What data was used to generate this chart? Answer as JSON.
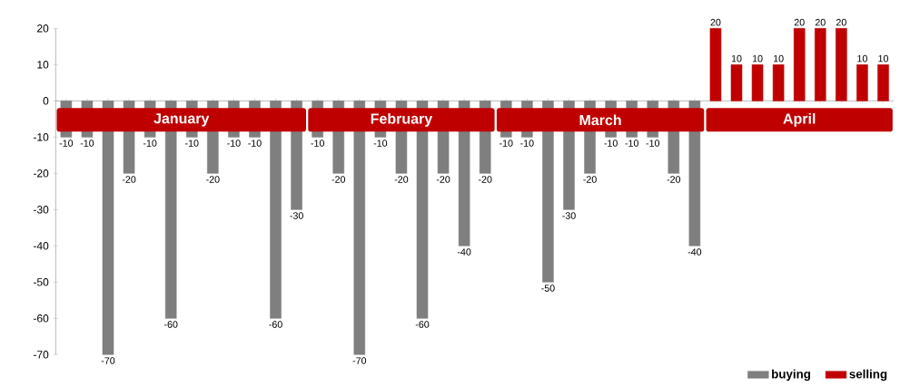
{
  "chart_data": {
    "type": "bar",
    "categories": [
      null,
      null,
      null,
      null,
      null,
      null,
      null,
      null,
      null,
      null,
      null,
      null,
      null,
      null,
      null,
      null,
      null,
      null,
      null,
      null,
      null,
      null,
      null,
      null,
      null,
      null,
      null,
      null,
      null,
      null,
      null,
      null,
      null,
      null,
      null,
      null,
      null,
      null,
      null,
      null
    ],
    "series": [
      {
        "name": "buying",
        "color": "#7f7f7f",
        "values": [
          -10,
          -10,
          -70,
          -20,
          -10,
          -60,
          -10,
          -20,
          -10,
          -10,
          -60,
          -30,
          -10,
          -20,
          -70,
          -10,
          -20,
          -60,
          -20,
          -40,
          -20,
          -10,
          -10,
          -50,
          -30,
          -20,
          -10,
          -10,
          -10,
          -20,
          -40,
          null,
          null,
          null,
          null,
          null,
          null,
          null,
          null,
          null
        ],
        "value_labels": [
          "-10",
          "-10",
          "-70",
          "-20",
          "-10",
          "-60",
          "-10",
          "-20",
          "-10",
          "-10",
          "-60",
          "-30",
          "-10",
          "-20",
          "-70",
          "-10",
          "-20",
          "-60",
          "-20",
          "-40",
          "-20",
          "-10",
          "-10",
          "-50",
          "-30",
          "-20",
          "-10",
          "-10",
          "-10",
          "-20",
          "-40",
          null,
          null,
          null,
          null,
          null,
          null,
          null,
          null,
          null
        ]
      },
      {
        "name": "selling",
        "color": "#c00000",
        "values": [
          null,
          null,
          null,
          null,
          null,
          null,
          null,
          null,
          null,
          null,
          null,
          null,
          null,
          null,
          null,
          null,
          null,
          null,
          null,
          null,
          null,
          null,
          null,
          null,
          null,
          null,
          null,
          null,
          null,
          null,
          null,
          20,
          10,
          10,
          10,
          20,
          20,
          20,
          10,
          10
        ],
        "value_labels": [
          null,
          null,
          null,
          null,
          null,
          null,
          null,
          null,
          null,
          null,
          null,
          null,
          null,
          null,
          null,
          null,
          null,
          null,
          null,
          null,
          null,
          null,
          null,
          null,
          null,
          null,
          null,
          null,
          null,
          null,
          null,
          "20",
          "10",
          "10",
          "10",
          "20",
          "20",
          "20",
          "10",
          "10"
        ]
      }
    ],
    "annotations": [
      "January",
      "February",
      "March",
      "April"
    ],
    "ylim": [
      -70,
      20
    ],
    "yticks": [
      -70,
      -60,
      -50,
      -40,
      -30,
      -20,
      -10,
      0,
      10,
      20
    ],
    "legend": "bottom right"
  }
}
